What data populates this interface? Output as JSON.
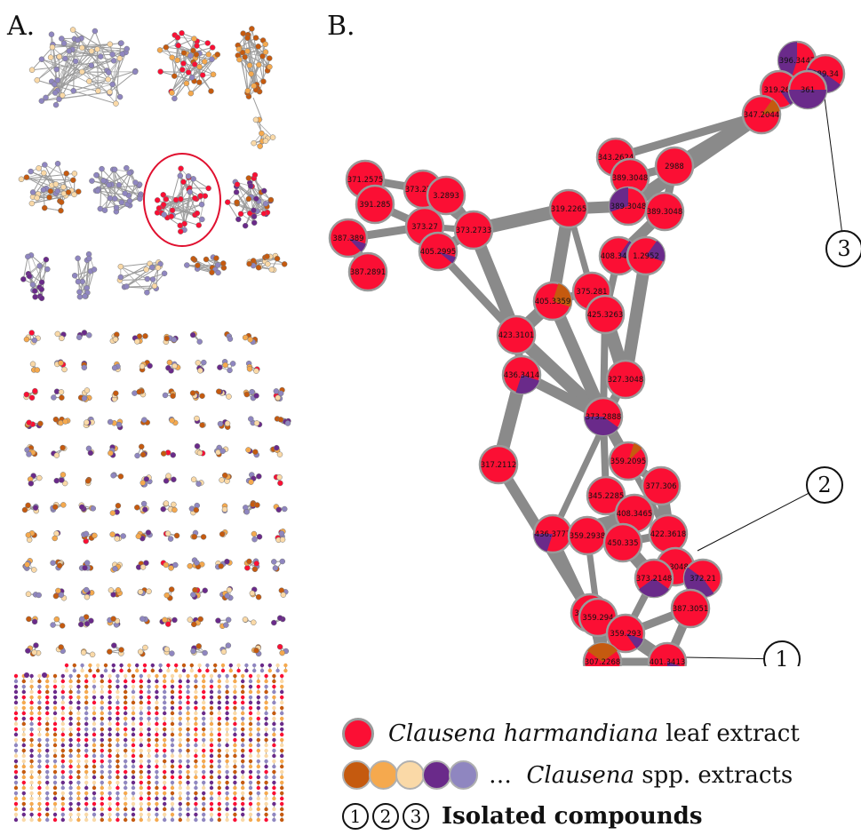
{
  "panel_a": {
    "label": "A."
  },
  "panel_b": {
    "label": "B.",
    "node_labels": [
      "396.3447",
      "389.34",
      "319.264",
      "361",
      "347.2044",
      "343.2624",
      "389.3048",
      "2988",
      "371.2575",
      "373.2731",
      "3.2893",
      "391.285",
      "373.27",
      "387.389",
      "405.2995",
      "387.2891",
      "319.2265",
      "389.3048",
      "389.3048",
      "373.2733",
      "408.3466",
      "1.2952",
      "405.3359",
      "375.281",
      "425.3263",
      "423.3101",
      "436.3414",
      "327.3048",
      "373.2888",
      "317.2112",
      "359.2095",
      "377.306",
      "345.2285",
      "408.3465",
      "436.3777",
      "359.2938",
      "450.335",
      "422.3618",
      "3.3048",
      "373.2148",
      "372.21",
      "317.211",
      "359.294",
      "359.293",
      "387.3051",
      "307.2268",
      "401.3413"
    ],
    "callouts": [
      "1",
      "2",
      "3"
    ]
  },
  "legend": {
    "harmandiana_species": "Clausena harmandiana",
    "harmandiana_rest": "leaf extract",
    "spp_prefix": "…",
    "spp_genus": "Clausena",
    "spp_rest": "spp. extracts",
    "isolated_label": "Isolated compounds",
    "nums": [
      "1",
      "2",
      "3"
    ]
  },
  "colors": {
    "harmandiana": "#fb0f34",
    "spp_swatches": [
      "#c55a0f",
      "#f5a94e",
      "#fad9a7",
      "#6a2a8a",
      "#8f86c0"
    ],
    "edge": "#8a8a8a",
    "node_border": "#9a9a9a",
    "highlight_ring": "#e0102f"
  }
}
